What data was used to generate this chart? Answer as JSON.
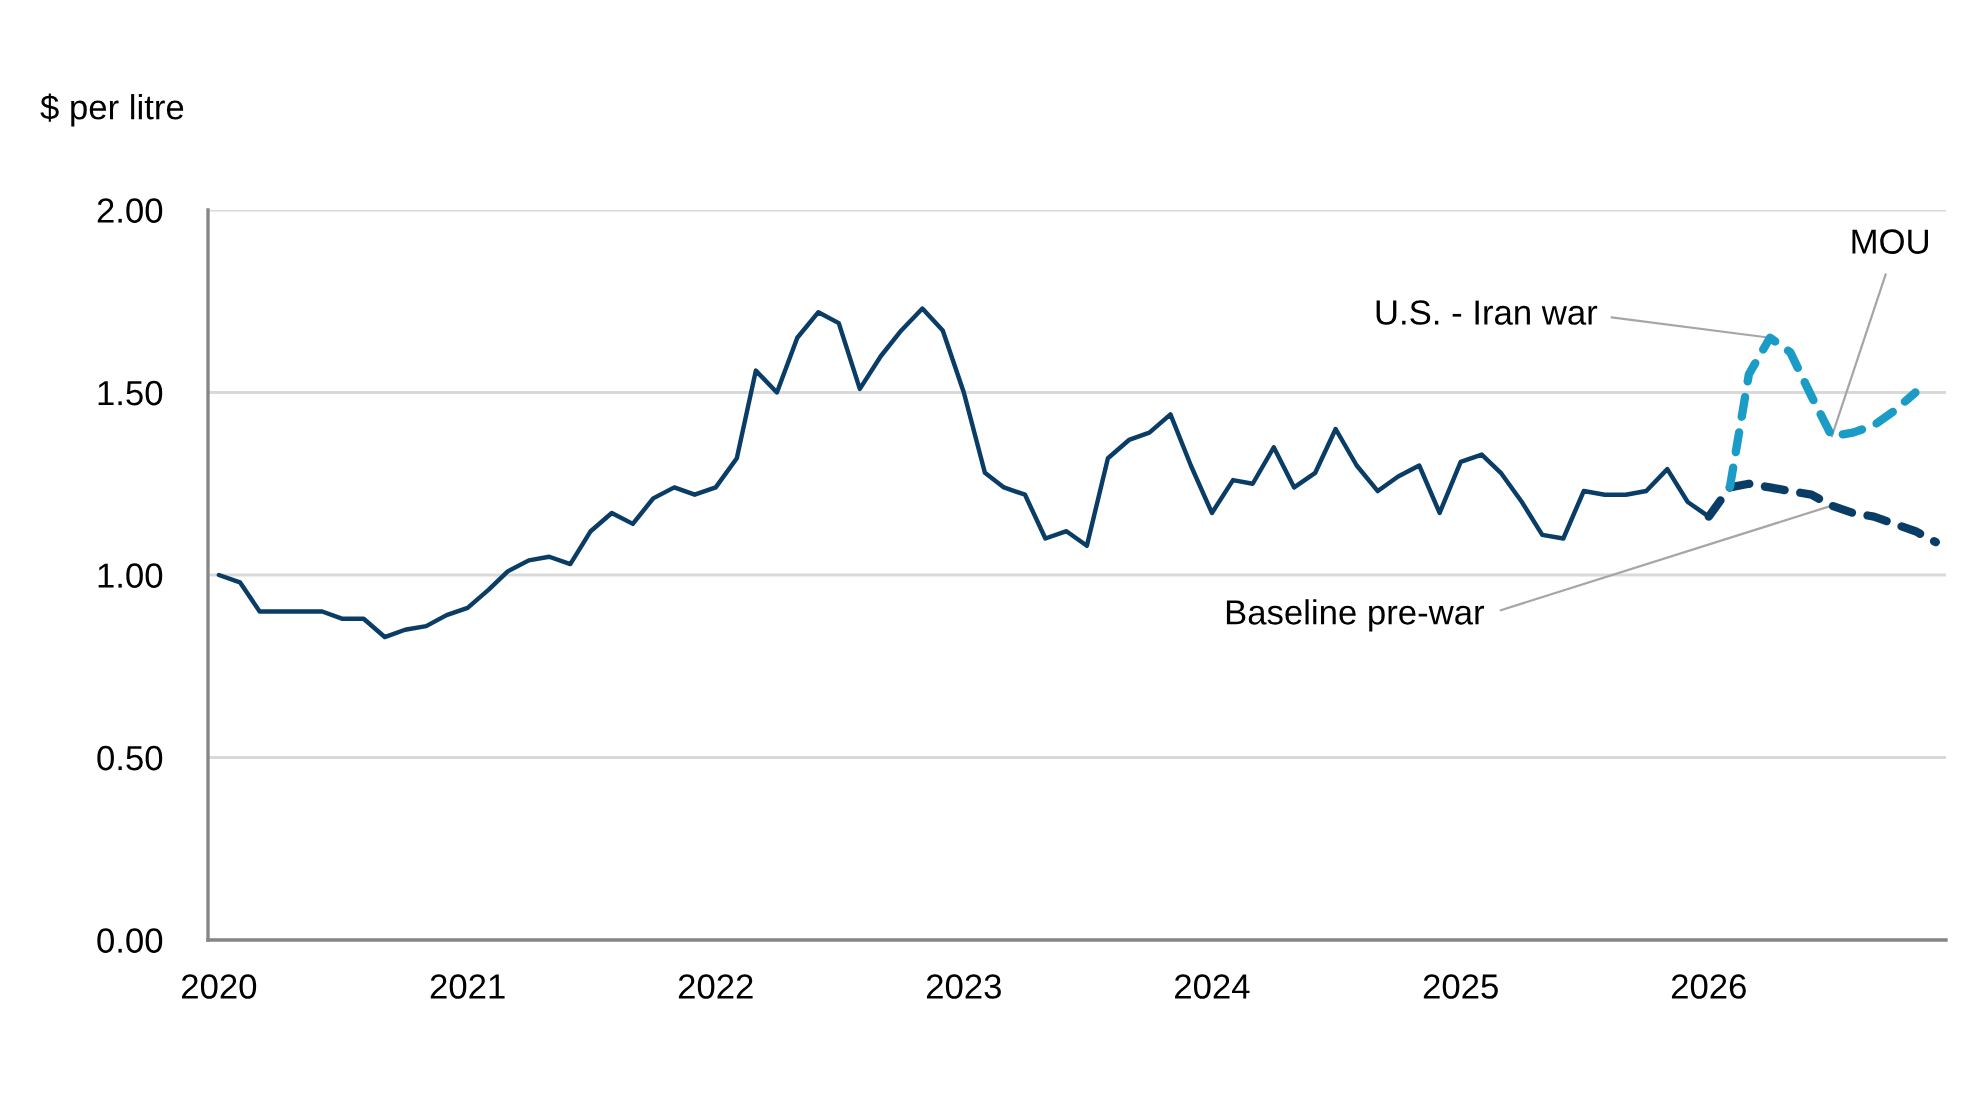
{
  "chart_data": {
    "type": "line",
    "ylabel": "$ per litre",
    "x": [
      "2020-01",
      "2020-02",
      "2020-03",
      "2020-04",
      "2020-05",
      "2020-06",
      "2020-07",
      "2020-08",
      "2020-09",
      "2020-10",
      "2020-11",
      "2020-12",
      "2021-01",
      "2021-02",
      "2021-03",
      "2021-04",
      "2021-05",
      "2021-06",
      "2021-07",
      "2021-08",
      "2021-09",
      "2021-10",
      "2021-11",
      "2021-12",
      "2022-01",
      "2022-02",
      "2022-03",
      "2022-04",
      "2022-05",
      "2022-06",
      "2022-07",
      "2022-08",
      "2022-09",
      "2022-10",
      "2022-11",
      "2022-12",
      "2023-01",
      "2023-02",
      "2023-03",
      "2023-04",
      "2023-05",
      "2023-06",
      "2023-07",
      "2023-08",
      "2023-09",
      "2023-10",
      "2023-11",
      "2023-12",
      "2024-01",
      "2024-02",
      "2024-03",
      "2024-04",
      "2024-05",
      "2024-06",
      "2024-07",
      "2024-08",
      "2024-09",
      "2024-10",
      "2024-11",
      "2024-12",
      "2025-01",
      "2025-02",
      "2025-03",
      "2025-04",
      "2025-05",
      "2025-06",
      "2025-07",
      "2025-08",
      "2025-09",
      "2025-10",
      "2025-11",
      "2025-12",
      "2026-01",
      "2026-02",
      "2026-03",
      "2026-04",
      "2026-05",
      "2026-06",
      "2026-07",
      "2026-08",
      "2026-09",
      "2026-10",
      "2026-11",
      "2026-12"
    ],
    "series": [
      {
        "color": "#0a3d66",
        "line_style": "solid",
        "values": [
          1.0,
          0.98,
          0.9,
          0.9,
          0.9,
          0.9,
          0.88,
          0.88,
          0.83,
          0.85,
          0.86,
          0.89,
          0.91,
          0.96,
          1.01,
          1.04,
          1.05,
          1.03,
          1.12,
          1.17,
          1.14,
          1.21,
          1.24,
          1.22,
          1.24,
          1.32,
          1.56,
          1.5,
          1.65,
          1.72,
          1.69,
          1.51,
          1.6,
          1.67,
          1.73,
          1.67,
          1.5,
          1.28,
          1.24,
          1.22,
          1.1,
          1.12,
          1.08,
          1.32,
          1.37,
          1.39,
          1.44,
          1.3,
          1.17,
          1.26,
          1.25,
          1.35,
          1.24,
          1.28,
          1.4,
          1.3,
          1.23,
          1.27,
          1.3,
          1.17,
          1.31,
          1.33,
          1.28,
          1.2,
          1.11,
          1.1,
          1.23,
          1.22,
          1.22,
          1.23,
          1.29,
          1.2,
          1.16,
          null,
          null,
          null,
          null,
          null,
          null,
          null,
          null,
          null,
          null,
          null
        ]
      },
      {
        "color": "#0a3d66",
        "line_style": "dashed",
        "values": [
          null,
          null,
          null,
          null,
          null,
          null,
          null,
          null,
          null,
          null,
          null,
          null,
          null,
          null,
          null,
          null,
          null,
          null,
          null,
          null,
          null,
          null,
          null,
          null,
          null,
          null,
          null,
          null,
          null,
          null,
          null,
          null,
          null,
          null,
          null,
          null,
          null,
          null,
          null,
          null,
          null,
          null,
          null,
          null,
          null,
          null,
          null,
          null,
          null,
          null,
          null,
          null,
          null,
          null,
          null,
          null,
          null,
          null,
          null,
          null,
          null,
          null,
          null,
          null,
          null,
          null,
          null,
          null,
          null,
          null,
          null,
          null,
          1.16,
          1.24,
          1.25,
          1.24,
          1.23,
          1.22,
          1.19,
          1.17,
          1.16,
          1.14,
          1.12,
          1.09
        ]
      },
      {
        "color": "#1a9cc6",
        "line_style": "dashed",
        "values": [
          null,
          null,
          null,
          null,
          null,
          null,
          null,
          null,
          null,
          null,
          null,
          null,
          null,
          null,
          null,
          null,
          null,
          null,
          null,
          null,
          null,
          null,
          null,
          null,
          null,
          null,
          null,
          null,
          null,
          null,
          null,
          null,
          null,
          null,
          null,
          null,
          null,
          null,
          null,
          null,
          null,
          null,
          null,
          null,
          null,
          null,
          null,
          null,
          null,
          null,
          null,
          null,
          null,
          null,
          null,
          null,
          null,
          null,
          null,
          null,
          null,
          null,
          null,
          null,
          null,
          null,
          null,
          null,
          null,
          null,
          null,
          null,
          null,
          1.24,
          1.55,
          1.65,
          1.61,
          1.49,
          1.38,
          1.39,
          1.41,
          1.45,
          1.5,
          null
        ]
      }
    ],
    "xlim": [
      "2019-12-16",
      "2026-12-16"
    ],
    "xticks": [
      "2020",
      "2021",
      "2022",
      "2023",
      "2024",
      "2025",
      "2026"
    ],
    "ylim": [
      0,
      2
    ],
    "yticks": [
      {
        "value": 0,
        "label": "0.00"
      },
      {
        "value": 0.5,
        "label": "0.50"
      },
      {
        "value": 1,
        "label": "1.00"
      },
      {
        "value": 1.5,
        "label": "1.50"
      },
      {
        "value": 2,
        "label": "2.00"
      }
    ],
    "grid": "y",
    "annotations": [
      {
        "text": "U.S. - Iran war",
        "x": "2026-04",
        "y": 1.65
      },
      {
        "text": "MOU",
        "x": "2026-07",
        "y": 1.38
      },
      {
        "text": "Baseline pre-war",
        "x": "2026-07",
        "y": 1.19
      }
    ]
  }
}
